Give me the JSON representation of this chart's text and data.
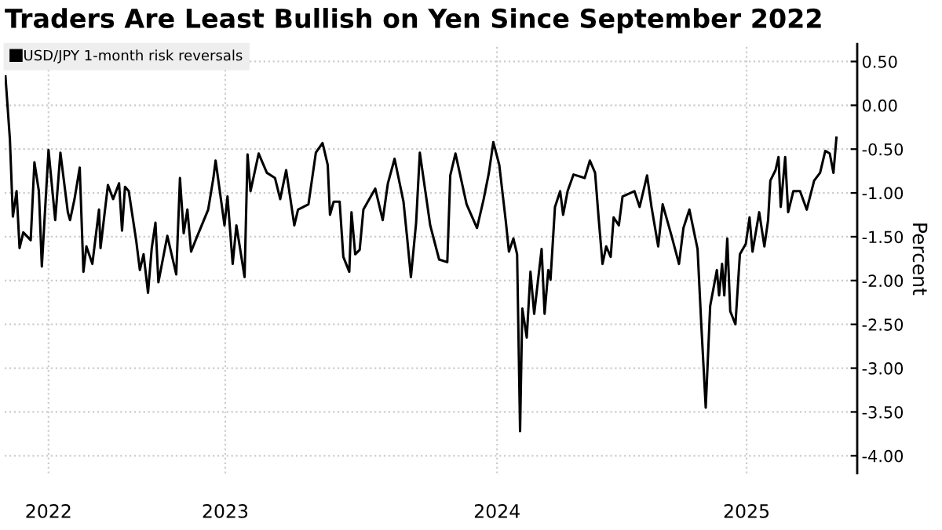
{
  "chart_data": {
    "type": "line",
    "title": "Traders Are Least Bullish on Yen Since September 2022",
    "ylabel": "Percent",
    "x": [
      "2022-09-08",
      "2022-09-14",
      "2022-09-18",
      "2022-09-23",
      "2022-09-27",
      "2022-10-02",
      "2022-10-12",
      "2022-10-17",
      "2022-10-23",
      "2022-10-27",
      "2022-11-05",
      "2022-11-14",
      "2022-11-21",
      "2022-12-01",
      "2022-12-04",
      "2022-12-10",
      "2022-12-17",
      "2022-12-22",
      "2022-12-26",
      "2023-01-03",
      "2023-01-12",
      "2023-01-14",
      "2023-01-24",
      "2023-01-31",
      "2023-02-08",
      "2023-02-12",
      "2023-02-16",
      "2023-02-21",
      "2023-03-03",
      "2023-03-08",
      "2023-03-13",
      "2023-03-19",
      "2023-03-24",
      "2023-03-29",
      "2023-04-02",
      "2023-04-14",
      "2023-04-26",
      "2023-05-01",
      "2023-05-06",
      "2023-05-11",
      "2023-05-16",
      "2023-05-23",
      "2023-06-08",
      "2023-06-15",
      "2023-06-18",
      "2023-06-30",
      "2023-07-04",
      "2023-07-11",
      "2023-07-16",
      "2023-07-27",
      "2023-07-31",
      "2023-08-04",
      "2023-08-15",
      "2023-08-26",
      "2023-09-06",
      "2023-09-13",
      "2023-09-21",
      "2023-10-02",
      "2023-10-07",
      "2023-10-21",
      "2023-10-31",
      "2023-11-09",
      "2023-11-16",
      "2023-11-19",
      "2023-11-24",
      "2023-12-02",
      "2023-12-07",
      "2023-12-15",
      "2023-12-18",
      "2023-12-23",
      "2023-12-29",
      "2024-01-03",
      "2024-01-19",
      "2024-01-29",
      "2024-02-05",
      "2024-02-14",
      "2024-02-26",
      "2024-03-02",
      "2024-03-07",
      "2024-03-14",
      "2024-03-19",
      "2024-04-02",
      "2024-04-14",
      "2024-04-25",
      "2024-04-29",
      "2024-05-06",
      "2024-05-14",
      "2024-05-21",
      "2024-06-04",
      "2024-06-13",
      "2024-06-20",
      "2024-06-26",
      "2024-07-04",
      "2024-07-13",
      "2024-07-17",
      "2024-07-23",
      "2024-07-28",
      "2024-08-01",
      "2024-08-04",
      "2024-08-10",
      "2024-08-15",
      "2024-08-20",
      "2024-08-30",
      "2024-09-03",
      "2024-09-08",
      "2024-09-11",
      "2024-09-17",
      "2024-09-24",
      "2024-09-28",
      "2024-10-04",
      "2024-10-12",
      "2024-10-27",
      "2024-11-03",
      "2024-11-10",
      "2024-11-15",
      "2024-11-20",
      "2024-11-25",
      "2024-12-01",
      "2024-12-05",
      "2024-12-12",
      "2024-12-17",
      "2025-01-02",
      "2025-01-09",
      "2025-01-19",
      "2025-01-25",
      "2025-02-03",
      "2025-02-09",
      "2025-02-21",
      "2025-03-03",
      "2025-03-09",
      "2025-03-17",
      "2025-03-28",
      "2025-04-02",
      "2025-04-08",
      "2025-04-14",
      "2025-04-23",
      "2025-04-26",
      "2025-04-30",
      "2025-05-03",
      "2025-05-07",
      "2025-05-11",
      "2025-05-18",
      "2025-05-24",
      "2025-06-01",
      "2025-06-06",
      "2025-06-10",
      "2025-06-19",
      "2025-06-26",
      "2025-07-01",
      "2025-07-04",
      "2025-07-11",
      "2025-07-15",
      "2025-07-18",
      "2025-07-24",
      "2025-07-28",
      "2025-08-04",
      "2025-08-13",
      "2025-08-22",
      "2025-09-01",
      "2025-09-09",
      "2025-09-16",
      "2025-09-22",
      "2025-09-27",
      "2025-10-01"
    ],
    "series": [
      {
        "name": "USD/JPY 1-month risk reversals",
        "color": "#000000",
        "values": [
          0.33,
          -0.39,
          -1.27,
          -0.98,
          -1.63,
          -1.45,
          -1.54,
          -0.65,
          -0.98,
          -1.84,
          -0.51,
          -1.31,
          -0.54,
          -1.22,
          -1.31,
          -1.07,
          -0.71,
          -1.9,
          -1.61,
          -1.81,
          -1.19,
          -1.63,
          -0.91,
          -1.07,
          -0.89,
          -1.43,
          -0.93,
          -0.98,
          -1.54,
          -1.88,
          -1.7,
          -2.14,
          -1.63,
          -1.34,
          -2.02,
          -1.49,
          -1.93,
          -0.83,
          -1.46,
          -1.19,
          -1.67,
          -1.52,
          -1.19,
          -0.83,
          -0.63,
          -1.37,
          -1.04,
          -1.81,
          -1.37,
          -1.96,
          -0.56,
          -0.98,
          -0.55,
          -0.77,
          -0.83,
          -1.07,
          -0.74,
          -1.37,
          -1.19,
          -1.13,
          -0.54,
          -0.43,
          -0.68,
          -1.25,
          -1.1,
          -1.1,
          -1.73,
          -1.9,
          -1.22,
          -1.7,
          -1.65,
          -1.19,
          -0.95,
          -1.31,
          -0.89,
          -0.61,
          -1.1,
          -1.52,
          -1.96,
          -1.34,
          -0.54,
          -1.37,
          -1.76,
          -1.79,
          -0.8,
          -0.55,
          -0.86,
          -1.13,
          -1.4,
          -1.07,
          -0.77,
          -0.42,
          -0.68,
          -1.34,
          -1.67,
          -1.52,
          -1.7,
          -3.72,
          -2.32,
          -2.65,
          -1.9,
          -2.38,
          -1.64,
          -2.38,
          -1.88,
          -1.99,
          -1.16,
          -0.98,
          -1.25,
          -0.98,
          -0.79,
          -0.83,
          -0.63,
          -0.77,
          -1.31,
          -1.81,
          -1.61,
          -1.73,
          -1.28,
          -1.37,
          -1.04,
          -0.98,
          -1.16,
          -0.8,
          -1.16,
          -1.61,
          -1.13,
          -1.49,
          -1.81,
          -1.4,
          -1.19,
          -1.64,
          -2.5,
          -3.45,
          -2.29,
          -1.88,
          -2.17,
          -1.81,
          -2.17,
          -1.52,
          -2.35,
          -2.5,
          -1.7,
          -1.58,
          -1.28,
          -1.67,
          -1.22,
          -1.61,
          -1.31,
          -0.86,
          -0.74,
          -0.59,
          -1.16,
          -0.59,
          -1.22,
          -0.98,
          -0.98,
          -1.19,
          -0.86,
          -0.77,
          -0.52,
          -0.55,
          -0.77,
          -0.37
        ]
      }
    ],
    "xlim": [
      "2022-09-07",
      "2025-10-29"
    ],
    "xticks": [
      {
        "value": "2022-11-05",
        "label": "2022"
      },
      {
        "value": "2023-07-01",
        "label": "2023"
      },
      {
        "value": "2024-07-01",
        "label": "2024"
      },
      {
        "value": "2025-06-02",
        "label": "2025"
      }
    ],
    "ylim": [
      -4.2,
      0.7
    ],
    "yticks": [
      {
        "value": 0.5,
        "label": "0.50"
      },
      {
        "value": 0,
        "label": "0.00"
      },
      {
        "value": -0.5,
        "label": "-0.50"
      },
      {
        "value": -1,
        "label": "-1.00"
      },
      {
        "value": -1.5,
        "label": "-1.50"
      },
      {
        "value": -2,
        "label": "-2.00"
      },
      {
        "value": -2.5,
        "label": "-2.50"
      },
      {
        "value": -3,
        "label": "-3.00"
      },
      {
        "value": -3.5,
        "label": "-3.50"
      },
      {
        "value": -4,
        "label": "-4.00"
      }
    ],
    "grid": true,
    "legend": "top left",
    "marker": "none",
    "line_style": "solid"
  }
}
